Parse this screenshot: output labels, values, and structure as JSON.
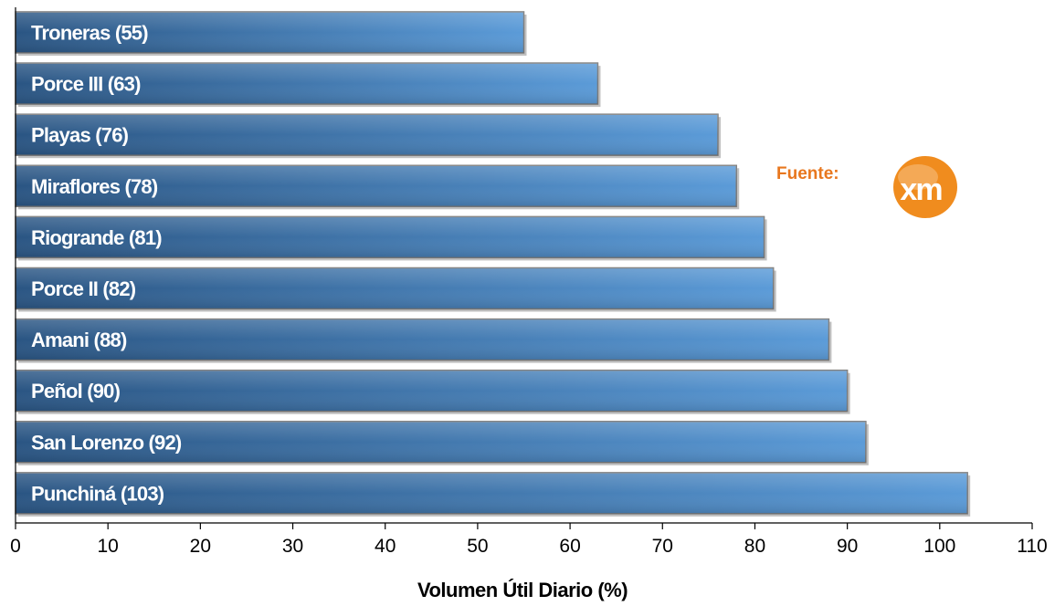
{
  "chart_data": {
    "type": "bar",
    "orientation": "horizontal",
    "categories": [
      "Troneras (55)",
      "Porce III (63)",
      "Playas (76)",
      "Miraflores (78)",
      "Riogrande (81)",
      "Porce II (82)",
      "Amani (88)",
      "Peñol (90)",
      "San Lorenzo (92)",
      "Punchiná (103)"
    ],
    "values": [
      55,
      63,
      76,
      78,
      81,
      82,
      88,
      90,
      92,
      103
    ],
    "xlabel": "Volumen Útil Diario (%)",
    "xlim": [
      0,
      110
    ],
    "xticks": [
      0,
      10,
      20,
      30,
      40,
      50,
      60,
      70,
      80,
      90,
      100,
      110
    ],
    "grid": false,
    "bar_color_dark": "#2a5583",
    "bar_color_light": "#5b9bd8"
  },
  "source": {
    "label": "Fuente:",
    "label_color": "#e8771e",
    "logo_text": "xm",
    "logo_color": "#f08c1e"
  }
}
